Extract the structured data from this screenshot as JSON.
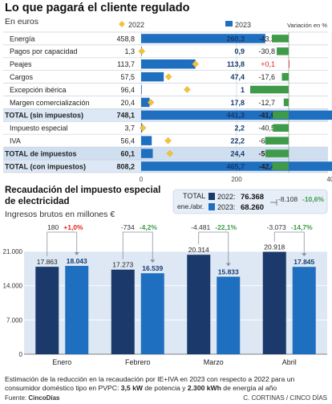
{
  "top": {
    "title": "Lo que pagará el cliente regulado",
    "subtitle": "En euros",
    "legend": {
      "y2022": "2022",
      "y2023": "2023",
      "variation": "Variación en %"
    },
    "colors": {
      "bar2023": "#1f6fc0",
      "diamond2022": "#f2c23a",
      "neg": "#3f9a4a",
      "pos": "#e02424",
      "highlight": "#dce8f5",
      "grid": "#c8d0dc"
    },
    "axis_ticks": [
      "0",
      "200",
      "400",
      "600",
      "800"
    ],
    "rows": [
      {
        "label": "Energía",
        "v2022": "458,8",
        "v2023": "260,3",
        "var": "-43,3",
        "n2022": 458.8,
        "n2023": 260.3,
        "nvar": -43.3,
        "style": "normal"
      },
      {
        "label": "Pagos por capacidad",
        "v2022": "1,3",
        "v2023": "0,9",
        "var": "-30,8",
        "n2022": 1.3,
        "n2023": 0.9,
        "nvar": -30.8,
        "style": "normal"
      },
      {
        "label": "Peajes",
        "v2022": "113,7",
        "v2023": "113,8",
        "var": "+0,1",
        "n2022": 113.7,
        "n2023": 113.8,
        "nvar": 0.1,
        "style": "normal"
      },
      {
        "label": "Cargos",
        "v2022": "57,5",
        "v2023": "47,4",
        "var": "-17,6",
        "n2022": 57.5,
        "n2023": 47.4,
        "nvar": -17.6,
        "style": "normal"
      },
      {
        "label": "Excepción ibérica",
        "v2022": "96,4",
        "v2023": "1",
        "var": "-99,0",
        "n2022": 96.4,
        "n2023": 1,
        "nvar": -99.0,
        "style": "normal"
      },
      {
        "label": "Margen comercialización",
        "v2022": "20,4",
        "v2023": "17,8",
        "var": "-12,7",
        "n2022": 20.4,
        "n2023": 17.8,
        "nvar": -12.7,
        "style": "normal"
      },
      {
        "label": "TOTAL (sin impuestos)",
        "v2022": "748,1",
        "v2023": "441,3",
        "var": "-41,0",
        "n2022": 748.1,
        "n2023": 441.3,
        "nvar": -41.0,
        "style": "total"
      },
      {
        "label": "Impuesto especial",
        "v2022": "3,7",
        "v2023": "2,2",
        "var": "-40,5",
        "n2022": 3.7,
        "n2023": 2.2,
        "nvar": -40.5,
        "style": "normal"
      },
      {
        "label": "IVA",
        "v2022": "56,4",
        "v2023": "22,2",
        "var": "-60,6",
        "n2022": 56.4,
        "n2023": 22.2,
        "nvar": -60.6,
        "style": "normal"
      },
      {
        "label": "TOTAL de impuestos",
        "v2022": "60,1",
        "v2023": "24,4",
        "var": "-59,5",
        "n2022": 60.1,
        "n2023": 24.4,
        "nvar": -59.5,
        "style": "total"
      },
      {
        "label": "TOTAL (con impuestos)",
        "v2022": "808,2",
        "v2023": "465,7",
        "var": "-42,4",
        "n2022": 808.2,
        "n2023": 465.7,
        "nvar": -42.4,
        "style": "total"
      }
    ]
  },
  "chart_data": {
    "type": "bar",
    "title": "Recaudación del impuesto especial de electricidad",
    "subtitle": "Ingresos brutos en millones €",
    "categories": [
      "Enero",
      "Febrero",
      "Marzo",
      "Abril"
    ],
    "series": [
      {
        "name": "2022",
        "values": [
          17863,
          17273,
          20314,
          20918
        ],
        "labels": [
          "17.863",
          "17.273",
          "20.314",
          "20.918"
        ],
        "color": "#1b3a6b"
      },
      {
        "name": "2023",
        "values": [
          18043,
          16539,
          15833,
          17845
        ],
        "labels": [
          "18.043",
          "16.539",
          "15.833",
          "17.845"
        ],
        "color": "#1f6fc0"
      }
    ],
    "changes": [
      {
        "abs": "180",
        "pct": "+1,0%",
        "dir": "up"
      },
      {
        "abs": "-734",
        "pct": "-4,2%",
        "dir": "down"
      },
      {
        "abs": "-4.481",
        "pct": "-22,1%",
        "dir": "down"
      },
      {
        "abs": "-3.073",
        "pct": "-14,7%",
        "dir": "down"
      }
    ],
    "ylim": [
      0,
      21000
    ],
    "yticks": [
      0,
      7000,
      14000,
      21000
    ],
    "ytick_labels": [
      "0",
      "7.000",
      "14.000",
      "21.000"
    ],
    "total_box": {
      "label1": "TOTAL",
      "label2": "ene./abr.",
      "y2022_label": "2022:",
      "y2022_value": "76.368",
      "y2023_label": "2023:",
      "y2023_value": "68.260",
      "diff": "-8.108",
      "pct": "-10,6%"
    },
    "colors": {
      "up": "#e02424",
      "down": "#3f9a4a",
      "plot_bg": "#dde8f4",
      "box_bg": "#e6eef8"
    }
  },
  "footer": {
    "note_part1": "Estimación de la reducción en la recaudación por IE+IVA en 2023 con respecto a 2022 para un consumidor doméstico tipo en PVPC: ",
    "note_bold1": "3,5 kW",
    "note_part2": " de potencia y ",
    "note_bold2": "2.300 kWh",
    "note_part3": " de energía al año",
    "source_label": "Fuente: ",
    "source_bold": "CincoDías",
    "credit": "C. CORTINAS / CINCO DÍAS"
  }
}
